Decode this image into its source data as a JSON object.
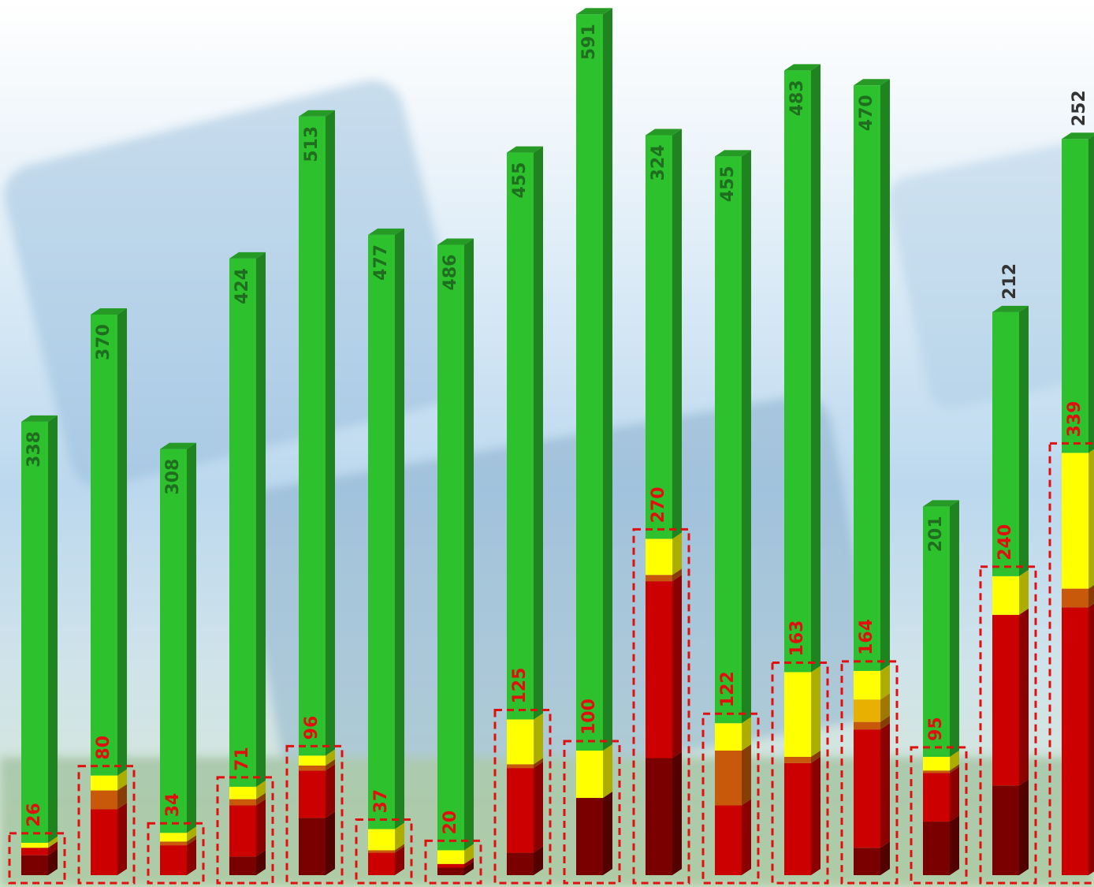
{
  "chart_data": {
    "type": "bar",
    "stacked": true,
    "categories": [
      null,
      null,
      null,
      null,
      null,
      null,
      null,
      null,
      null,
      null,
      null,
      null,
      null,
      null,
      null,
      null
    ],
    "series": [
      {
        "color": "#7a0000",
        "values": [
          16,
          0,
          0,
          15,
          46,
          0,
          6,
          18,
          62,
          94,
          0,
          0,
          22,
          43,
          72,
          0
        ]
      },
      {
        "color": "#cc0000",
        "values": [
          6,
          53,
          24,
          41,
          38,
          18,
          3,
          68,
          0,
          142,
          56,
          90,
          95,
          39,
          137,
          215
        ]
      },
      {
        "color": "#c8590a",
        "values": [
          0,
          15,
          3,
          5,
          4,
          2,
          0,
          3,
          0,
          5,
          44,
          5,
          6,
          2,
          0,
          15
        ]
      },
      {
        "color": "#e8b000",
        "values": [
          0,
          0,
          0,
          0,
          0,
          0,
          0,
          0,
          0,
          0,
          0,
          0,
          18,
          0,
          0,
          0
        ]
      },
      {
        "color": "#ffff00",
        "values": [
          4,
          12,
          7,
          10,
          8,
          17,
          11,
          36,
          38,
          29,
          22,
          68,
          23,
          11,
          31,
          109
        ]
      },
      {
        "color": "#2ec12e",
        "values": [
          338,
          370,
          308,
          424,
          513,
          477,
          486,
          455,
          591,
          324,
          455,
          483,
          470,
          201,
          212,
          252
        ]
      }
    ],
    "box_labels": [
      26,
      80,
      34,
      71,
      96,
      37,
      20,
      125,
      100,
      270,
      122,
      163,
      164,
      95,
      240,
      339
    ],
    "box_color": "#e01010",
    "label_color": "#1f6e1f"
  }
}
